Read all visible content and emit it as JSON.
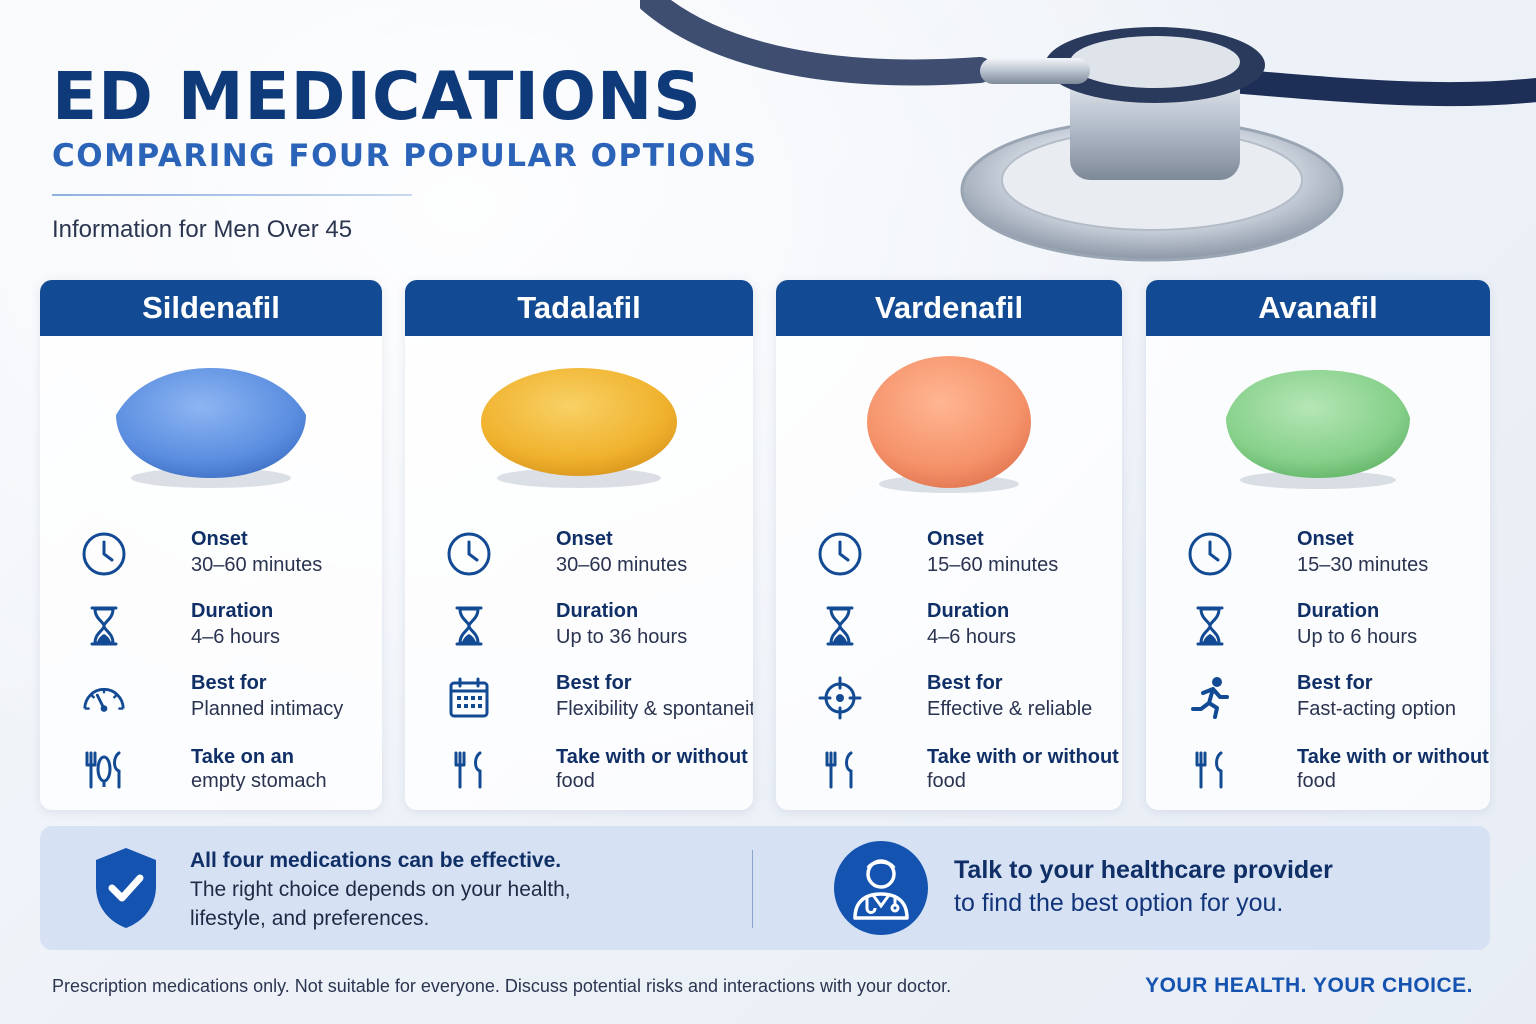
{
  "header": {
    "title": "ED MEDICATIONS",
    "subtitle": "COMPARING FOUR POPULAR OPTIONS",
    "tagline": "Information for Men Over 45"
  },
  "colors": {
    "primary": "#124a93",
    "accent": "#2a63b8",
    "pill_sildenafil": "#5b8ee0",
    "pill_tadalafil": "#f0b22e",
    "pill_vardenafil": "#f5926a",
    "pill_avanafil": "#86d08a"
  },
  "medications": [
    {
      "name": "Sildenafil",
      "pill_icon": "blue-diamond-pill",
      "onset_label": "Onset",
      "onset": "30–60 minutes",
      "duration_label": "Duration",
      "duration": "4–6 hours",
      "best_label": "Best for",
      "best": "Planned intimacy",
      "best_icon": "gauge-icon",
      "food_line1": "Take on an",
      "food_line2": "empty stomach",
      "food_icon": "no-food-icon"
    },
    {
      "name": "Tadalafil",
      "pill_icon": "yellow-oval-pill",
      "onset_label": "Onset",
      "onset": "30–60 minutes",
      "duration_label": "Duration",
      "duration": "Up to 36 hours",
      "best_label": "Best for",
      "best": "Flexibility & spontaneity",
      "best_icon": "calendar-icon",
      "food_line1": "Take with or without",
      "food_line2": "food",
      "food_icon": "utensils-icon"
    },
    {
      "name": "Vardenafil",
      "pill_icon": "orange-round-pill",
      "onset_label": "Onset",
      "onset": "15–60 minutes",
      "duration_label": "Duration",
      "duration": "4–6 hours",
      "best_label": "Best for",
      "best": "Effective & reliable",
      "best_icon": "target-icon",
      "food_line1": "Take with or without",
      "food_line2": "food",
      "food_icon": "utensils-icon"
    },
    {
      "name": "Avanafil",
      "pill_icon": "green-oval-pill",
      "onset_label": "Onset",
      "onset": "15–30 minutes",
      "duration_label": "Duration",
      "duration": "Up to 6 hours",
      "best_label": "Best for",
      "best": "Fast-acting option",
      "best_icon": "runner-icon",
      "food_line1": "Take with or without",
      "food_line2": "food",
      "food_icon": "utensils-icon"
    }
  ],
  "banner": {
    "left_strong": "All four medications can be effective.",
    "left_line1": "The right choice depends on your health,",
    "left_line2": "lifestyle, and preferences.",
    "right_strong": "Talk to your healthcare provider",
    "right_line": "to find the best option for you.",
    "left_icon": "shield-check-icon",
    "right_icon": "doctor-icon"
  },
  "footer": {
    "disclaimer": "Prescription medications only. Not suitable for everyone. Discuss potential risks and interactions with your doctor.",
    "slogan": "YOUR HEALTH. YOUR CHOICE."
  }
}
